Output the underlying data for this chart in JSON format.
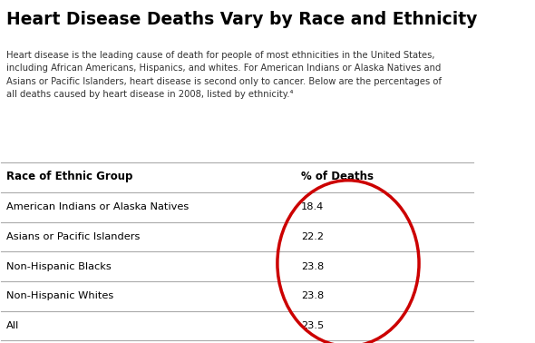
{
  "title": "Heart Disease Deaths Vary by Race and Ethnicity",
  "body_text": "Heart disease is the leading cause of death for people of most ethnicities in the United States,\nincluding African Americans, Hispanics, and whites. For American Indians or Alaska Natives and\nAsians or Pacific Islanders, heart disease is second only to cancer. Below are the percentages of\nall deaths caused by heart disease in 2008, listed by ethnicity.⁴",
  "col1_header": "Race of Ethnic Group",
  "col2_header": "% of Deaths",
  "rows": [
    [
      "American Indians or Alaska Natives",
      "18.4"
    ],
    [
      "Asians or Pacific Islanders",
      "22.2"
    ],
    [
      "Non-Hispanic Blacks",
      "23.8"
    ],
    [
      "Non-Hispanic Whites",
      "23.8"
    ],
    [
      "All",
      "23.5"
    ]
  ],
  "background_color": "#ffffff",
  "title_color": "#000000",
  "body_text_color": "#333333",
  "table_header_color": "#000000",
  "table_row_color": "#000000",
  "circle_color": "#cc0000",
  "divider_color": "#aaaaaa"
}
